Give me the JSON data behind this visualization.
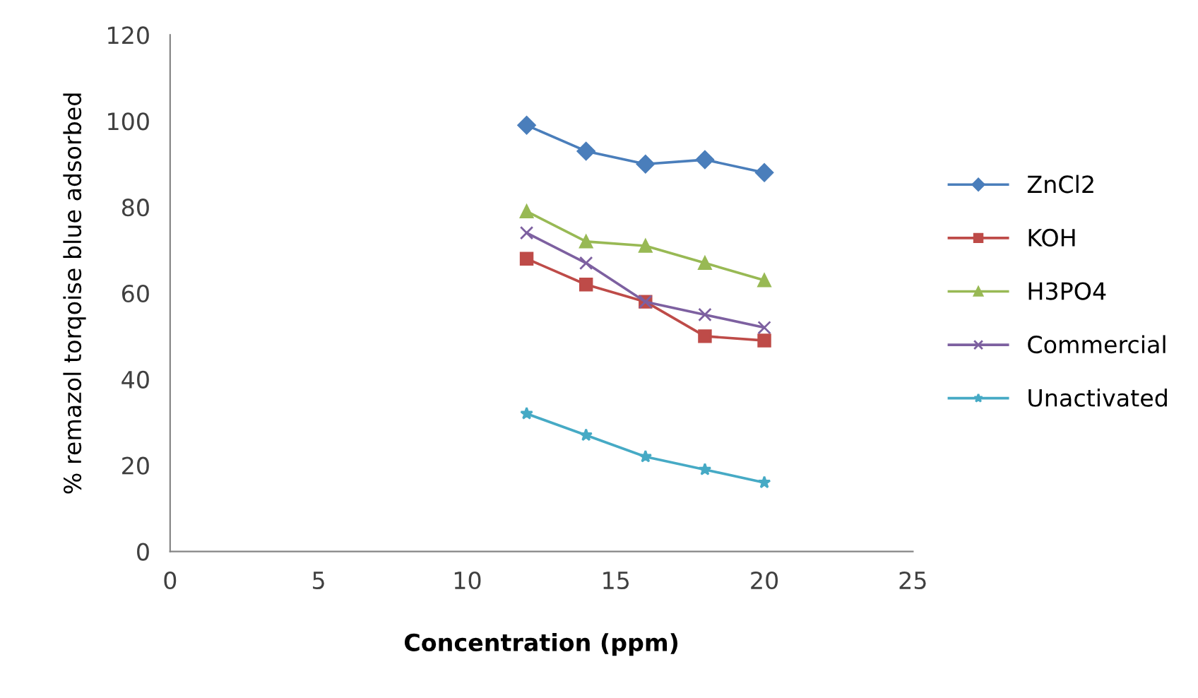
{
  "chart_data": {
    "type": "line",
    "xlabel": "Concentration (ppm)",
    "ylabel": "% remazol torqoise blue adsorbed",
    "x": [
      12,
      14,
      16,
      18,
      20
    ],
    "series": [
      {
        "name": "ZnCl2",
        "color": "#4a7ebb",
        "marker": "diamond",
        "values": [
          99,
          93,
          90,
          91,
          88
        ]
      },
      {
        "name": "KOH",
        "color": "#be4b48",
        "marker": "square",
        "values": [
          68,
          62,
          58,
          50,
          49
        ]
      },
      {
        "name": "H3PO4",
        "color": "#98b954",
        "marker": "triangle",
        "values": [
          79,
          72,
          71,
          67,
          63
        ]
      },
      {
        "name": "Commercial",
        "color": "#7d60a0",
        "marker": "cross",
        "values": [
          74,
          67,
          58,
          55,
          52
        ]
      },
      {
        "name": "Unactivated",
        "color": "#46aac5",
        "marker": "star",
        "values": [
          32,
          27,
          22,
          19,
          16
        ]
      }
    ],
    "xlim": [
      0,
      25
    ],
    "xticks": [
      0,
      5,
      10,
      15,
      20,
      25
    ],
    "ylim": [
      0,
      120
    ],
    "yticks": [
      0,
      20,
      40,
      60,
      80,
      100,
      120
    ],
    "grid": false,
    "legend": "right",
    "line_style": "solid"
  }
}
